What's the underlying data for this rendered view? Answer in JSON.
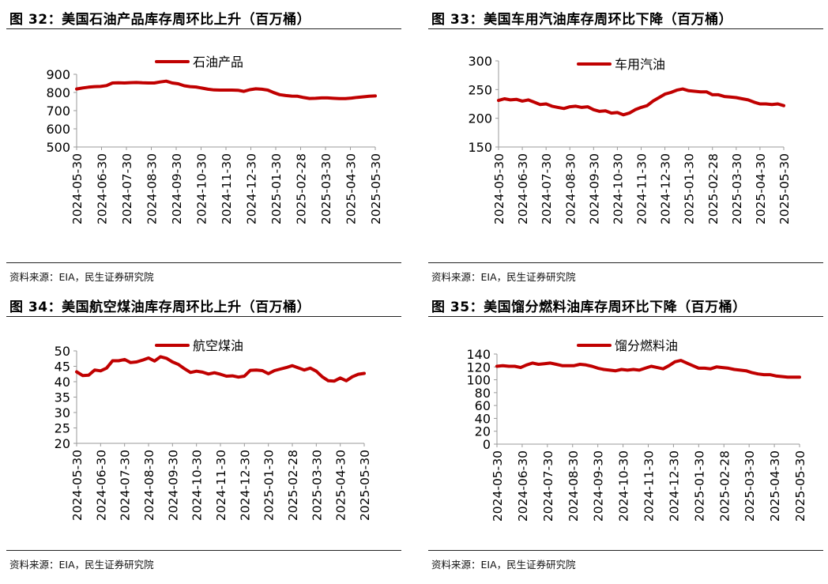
{
  "source_text": "资料来源：EIA，民生证券研究院",
  "series_color": "#C00000",
  "chart_data": [
    {
      "type": "line",
      "title": "图 32：美国石油产品库存周环比上升（百万桶）",
      "legend": [
        "石油产品"
      ],
      "legend_position": "top-center",
      "ylim": [
        500,
        900
      ],
      "yticks": [
        500,
        600,
        700,
        800,
        900
      ],
      "xtick_labels": [
        "2024-05-30",
        "2024-06-30",
        "2024-07-30",
        "2024-08-30",
        "2024-09-30",
        "2024-10-30",
        "2024-11-30",
        "2024-12-30",
        "2025-01-30",
        "2025-02-28",
        "2025-03-30",
        "2025-04-30",
        "2025-05-30"
      ],
      "grid": false,
      "series": [
        {
          "name": "石油产品",
          "values": [
            819,
            825,
            829,
            832,
            833,
            838,
            852,
            853,
            852,
            854,
            855,
            853,
            852,
            852,
            858,
            862,
            852,
            848,
            837,
            832,
            830,
            824,
            818,
            814,
            813,
            813,
            813,
            812,
            806,
            815,
            820,
            818,
            813,
            799,
            788,
            783,
            780,
            779,
            772,
            767,
            768,
            770,
            770,
            768,
            766,
            766,
            769,
            773,
            776,
            779,
            781
          ]
        }
      ]
    },
    {
      "type": "line",
      "title": "图 33：美国车用汽油库存周环比下降（百万桶）",
      "legend": [
        "车用汽油"
      ],
      "legend_position": "top-center",
      "ylim": [
        150,
        300
      ],
      "yticks": [
        150,
        200,
        250,
        300
      ],
      "xtick_labels": [
        "2024-05-30",
        "2024-06-30",
        "2024-07-30",
        "2024-08-30",
        "2024-09-30",
        "2024-10-30",
        "2024-11-30",
        "2024-12-30",
        "2025-01-30",
        "2025-02-28",
        "2025-03-30",
        "2025-04-30",
        "2025-05-30"
      ],
      "grid": false,
      "series": [
        {
          "name": "车用汽油",
          "values": [
            231,
            234,
            232,
            233,
            230,
            232,
            228,
            224,
            225,
            221,
            219,
            217,
            220,
            221,
            219,
            220,
            215,
            212,
            213,
            209,
            210,
            206,
            209,
            215,
            219,
            222,
            230,
            236,
            242,
            245,
            249,
            251,
            248,
            247,
            246,
            246,
            241,
            241,
            238,
            237,
            236,
            234,
            232,
            228,
            225,
            225,
            224,
            225,
            222
          ]
        }
      ]
    },
    {
      "type": "line",
      "title": "图 34：美国航空煤油库存周环比上升（百万桶）",
      "legend": [
        "航空煤油"
      ],
      "legend_position": "top-center",
      "ylim": [
        20,
        50
      ],
      "yticks": [
        20,
        25,
        30,
        35,
        40,
        45,
        50
      ],
      "xtick_labels": [
        "2024-05-30",
        "2024-06-30",
        "2024-07-30",
        "2024-08-30",
        "2024-09-30",
        "2024-10-30",
        "2024-11-30",
        "2024-12-30",
        "2025-01-30",
        "2025-02-28",
        "2025-03-30",
        "2025-04-30",
        "2025-05-30"
      ],
      "grid": false,
      "series": [
        {
          "name": "航空煤油",
          "values": [
            43.2,
            42.0,
            42.1,
            43.8,
            43.5,
            44.4,
            46.8,
            46.8,
            47.2,
            46.2,
            46.4,
            47.0,
            47.7,
            46.7,
            48.1,
            47.6,
            46.4,
            45.6,
            44.2,
            43.0,
            43.4,
            43.1,
            42.5,
            42.9,
            42.4,
            41.8,
            41.9,
            41.5,
            41.8,
            43.7,
            43.8,
            43.6,
            42.6,
            43.6,
            44.1,
            44.6,
            45.2,
            44.5,
            43.8,
            44.4,
            43.4,
            41.6,
            40.3,
            40.2,
            41.2,
            40.3,
            41.6,
            42.4,
            42.7
          ]
        }
      ]
    },
    {
      "type": "line",
      "title": "图 35：美国馏分燃料油库存周环比下降（百万桶）",
      "legend": [
        "馏分燃料油"
      ],
      "legend_position": "top-center",
      "ylim": [
        0,
        140
      ],
      "yticks": [
        0,
        20,
        40,
        60,
        80,
        100,
        120,
        140
      ],
      "xtick_labels": [
        "2024-05-30",
        "2024-06-30",
        "2024-07-30",
        "2024-08-30",
        "2024-09-30",
        "2024-10-30",
        "2024-11-30",
        "2024-12-30",
        "2025-01-30",
        "2025-02-28",
        "2025-03-30",
        "2025-04-30",
        "2025-05-30"
      ],
      "grid": false,
      "series": [
        {
          "name": "馏分燃料油",
          "values": [
            121,
            122,
            121,
            121,
            119,
            123,
            126,
            124,
            125,
            126,
            124,
            122,
            122,
            122,
            124,
            123,
            121,
            118,
            116,
            115,
            114,
            116,
            115,
            116,
            115,
            118,
            121,
            119,
            117,
            122,
            128,
            130,
            126,
            122,
            118,
            118,
            117,
            120,
            119,
            118,
            116,
            115,
            114,
            111,
            109,
            108,
            108,
            106,
            105,
            104,
            104,
            104
          ]
        }
      ]
    }
  ]
}
